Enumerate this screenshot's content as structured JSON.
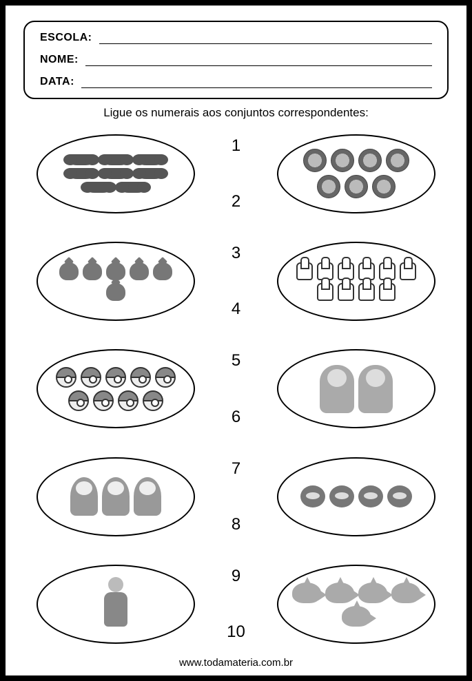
{
  "header": {
    "fields": [
      {
        "label": "ESCOLA:"
      },
      {
        "label": "NOME:"
      },
      {
        "label": "DATA:"
      }
    ]
  },
  "instruction": "Ligue os numerais aos conjuntos correspondentes:",
  "numbers": [
    "1",
    "2",
    "3",
    "4",
    "5",
    "6",
    "7",
    "8",
    "9",
    "10"
  ],
  "left_sets": [
    {
      "icon": "mustache",
      "count": 8
    },
    {
      "icon": "bird",
      "count": 6
    },
    {
      "icon": "ball",
      "count": 9
    },
    {
      "icon": "ppg",
      "count": 3
    },
    {
      "icon": "man",
      "count": 1
    }
  ],
  "right_sets": [
    {
      "icon": "disc",
      "count": 7
    },
    {
      "icon": "thumb",
      "count": 10
    },
    {
      "icon": "char",
      "count": 2
    },
    {
      "icon": "abird",
      "count": 4
    },
    {
      "icon": "shark",
      "count": 5
    }
  ],
  "footer": "www.todamateria.com.br"
}
